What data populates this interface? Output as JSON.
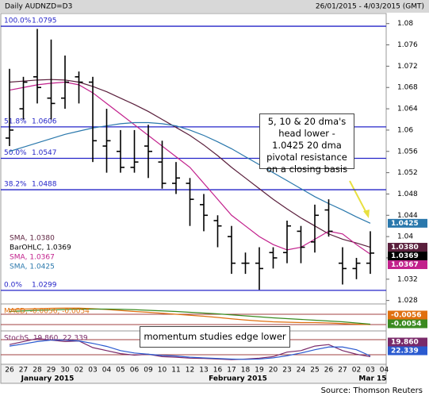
{
  "header": {
    "title": "Daily AUDNZD=D3",
    "range": "26/01/2015 - 4/03/2015 (GMT)"
  },
  "chart_data": {
    "type": "ohlc",
    "categories": [
      "26",
      "27",
      "28",
      "29",
      "30",
      "02",
      "03",
      "04",
      "05",
      "06",
      "09",
      "10",
      "11",
      "12",
      "13",
      "16",
      "17",
      "18",
      "19",
      "20",
      "23",
      "24",
      "25",
      "26",
      "27",
      "02",
      "03",
      "04"
    ],
    "months": [
      "January 2015",
      "February 2015",
      "Mar 15"
    ],
    "ylim": [
      1.0275,
      1.081
    ],
    "yticks": [
      1.028,
      1.032,
      1.036,
      1.04,
      1.044,
      1.048,
      1.052,
      1.056,
      1.06,
      1.064,
      1.068,
      1.072,
      1.076,
      1.08
    ],
    "ohlc": {
      "legend": "BarOHLC, 1.0369",
      "label": "1.0369",
      "color": "#000000",
      "open": [
        1.0585,
        1.064,
        1.07,
        1.066,
        1.066,
        1.07,
        1.069,
        1.057,
        1.056,
        1.053,
        1.057,
        1.054,
        1.05,
        1.05,
        1.046,
        1.043,
        1.04,
        1.035,
        1.035,
        1.037,
        1.037,
        1.041,
        1.039,
        1.045,
        1.035,
        1.034,
        1.035,
        null
      ],
      "high": [
        1.0715,
        1.07,
        1.079,
        1.077,
        1.074,
        1.071,
        1.07,
        1.064,
        1.06,
        1.06,
        1.061,
        1.058,
        1.054,
        1.051,
        1.048,
        1.044,
        1.042,
        1.037,
        1.038,
        1.038,
        1.043,
        1.042,
        1.046,
        1.047,
        1.038,
        1.036,
        1.041,
        null
      ],
      "low": [
        1.057,
        1.062,
        1.065,
        1.062,
        1.064,
        1.065,
        1.054,
        1.052,
        1.052,
        1.052,
        1.051,
        1.049,
        1.048,
        1.042,
        1.041,
        1.038,
        1.033,
        1.033,
        1.03,
        1.034,
        1.035,
        1.035,
        1.037,
        1.04,
        1.031,
        1.032,
        1.033,
        null
      ],
      "close": [
        1.06,
        1.069,
        1.068,
        1.065,
        1.069,
        1.069,
        1.058,
        1.058,
        1.053,
        1.054,
        1.056,
        1.05,
        1.051,
        1.047,
        1.044,
        1.042,
        1.035,
        1.035,
        1.034,
        1.036,
        1.042,
        1.038,
        1.044,
        1.041,
        1.034,
        1.035,
        1.0369,
        null
      ]
    },
    "series": [
      {
        "legend": "SMA, 1.0380",
        "label": "1.0380",
        "color": "#5a1f3c",
        "values": [
          1.069,
          1.0692,
          1.0694,
          1.0695,
          1.0694,
          1.069,
          1.0682,
          1.0672,
          1.066,
          1.0648,
          1.0635,
          1.062,
          1.0605,
          1.059,
          1.0572,
          1.0552,
          1.053,
          1.051,
          1.049,
          1.047,
          1.0452,
          1.0435,
          1.042,
          1.0405,
          1.0395,
          1.0388,
          1.038,
          null
        ]
      },
      {
        "legend": "SMA, 1.0367",
        "label": "1.0367",
        "color": "#c2208c",
        "values": [
          1.0675,
          1.068,
          1.0685,
          1.0688,
          1.069,
          1.0685,
          1.067,
          1.065,
          1.063,
          1.061,
          1.059,
          1.057,
          1.055,
          1.053,
          1.05,
          1.047,
          1.044,
          1.042,
          1.04,
          1.0385,
          1.0375,
          1.038,
          1.0395,
          1.041,
          1.0405,
          1.0385,
          1.0367,
          null
        ]
      },
      {
        "legend": "SMA, 1.0425",
        "label": "1.0425",
        "color": "#2a78ac",
        "values": [
          1.056,
          1.0568,
          1.0576,
          1.0584,
          1.0592,
          1.0598,
          1.0604,
          1.0608,
          1.0612,
          1.0614,
          1.0614,
          1.0612,
          1.0608,
          1.06,
          1.059,
          1.0578,
          1.0565,
          1.055,
          1.0535,
          1.052,
          1.0505,
          1.049,
          1.0475,
          1.0462,
          1.045,
          1.0437,
          1.0425,
          null
        ]
      }
    ],
    "levels": [
      {
        "name": "100.0%",
        "value": 1.0795
      },
      {
        "name": "51.8%",
        "value": 1.0606
      },
      {
        "name": "50.0%",
        "value": 1.0547
      },
      {
        "name": "38.2%",
        "value": 1.0488
      },
      {
        "name": "0.0%",
        "value": 1.0299
      }
    ],
    "level_color": "#2424c8",
    "annotations": [
      "5, 10 & 20 dma's head lower - 1.0425 20 dma pivotal resistance on a closing basis",
      "momentum studies edge lower"
    ],
    "macd": {
      "legend": "MACD, -0.0056, -0.0054",
      "ylim": [
        -0.008,
        0.004
      ],
      "series": [
        {
          "label": "-0.0056",
          "color": "#e07010",
          "values": [
            0.002,
            0.0022,
            0.0024,
            0.0026,
            0.0027,
            0.0027,
            0.0024,
            0.002,
            0.0015,
            0.001,
            0.0006,
            0.0001,
            -0.0004,
            -0.0009,
            -0.0014,
            -0.002,
            -0.0027,
            -0.0033,
            -0.0038,
            -0.0042,
            -0.0044,
            -0.0046,
            -0.0046,
            -0.0048,
            -0.0051,
            -0.0054,
            -0.0056,
            null
          ]
        },
        {
          "label": "-0.0054",
          "color": "#3a8a20",
          "values": [
            0.001,
            0.0013,
            0.0016,
            0.0018,
            0.002,
            0.0022,
            0.0022,
            0.0022,
            0.0021,
            0.0019,
            0.0016,
            0.0013,
            0.001,
            0.0006,
            0.0002,
            -0.0002,
            -0.0007,
            -0.0012,
            -0.0017,
            -0.0022,
            -0.0026,
            -0.003,
            -0.0034,
            -0.0038,
            -0.0042,
            -0.0048,
            -0.0054,
            null
          ]
        }
      ]
    },
    "stoch": {
      "legend": "StochS, 19.860, 22.339",
      "ylim": [
        0,
        100
      ],
      "series": [
        {
          "label": "19.860",
          "color": "#7a2a6a",
          "values": [
            60,
            70,
            80,
            75,
            70,
            72,
            50,
            40,
            30,
            25,
            28,
            20,
            18,
            15,
            14,
            12,
            10,
            12,
            15,
            20,
            35,
            40,
            55,
            60,
            40,
            28,
            19.86,
            null
          ]
        },
        {
          "label": "22.339",
          "color": "#2a5ad0",
          "values": [
            55,
            62,
            70,
            75,
            75,
            72,
            64,
            54,
            40,
            32,
            28,
            24,
            22,
            18,
            16,
            14,
            12,
            11,
            12,
            16,
            23,
            32,
            43,
            52,
            52,
            43,
            22.339,
            null
          ]
        }
      ]
    }
  },
  "source": "Source: Thomson Reuters"
}
